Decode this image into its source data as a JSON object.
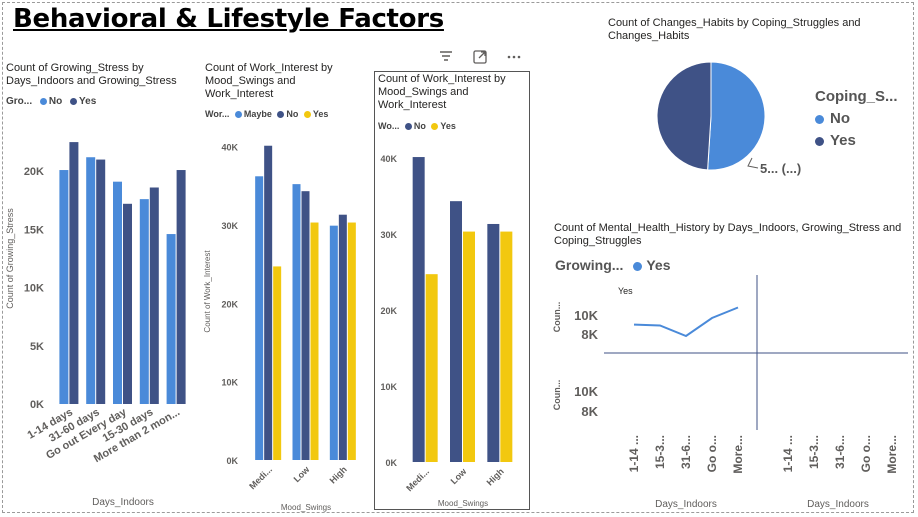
{
  "page": {
    "title": "Behavioral & Lifestyle Factors"
  },
  "colors": {
    "no": "#3f5286",
    "yes_blue": "#4a8ad9",
    "yes_gold": "#f2c80f",
    "maybe": "#4a8ad9",
    "no_bar": "#3f5286",
    "axis": "#605e5c"
  },
  "icons": {
    "filter": "filter-icon",
    "focus": "focus-mode-icon",
    "more": "more-options-icon"
  },
  "visuals": {
    "v1": {
      "title": "Count of Growing_Stress by Days_Indoors and Growing_Stress",
      "legend_title": "Gro...",
      "legend": [
        "No",
        "Yes"
      ]
    },
    "v2": {
      "title": "Count of Work_Interest by Mood_Swings and Work_Interest",
      "legend_title": "Wor...",
      "legend": [
        "Maybe",
        "No",
        "Yes"
      ]
    },
    "v3": {
      "title": "Count of Work_Interest by Mood_Swings and Work_Interest",
      "legend_title": "Wo...",
      "legend": [
        "No",
        "Yes"
      ]
    },
    "v4": {
      "title": "Count of Changes_Habits by Coping_Struggles and Changes_Habits",
      "legend_title": "Coping_S...",
      "legend": [
        "No",
        "Yes"
      ],
      "data_label": "5... (...)"
    },
    "v5": {
      "title": "Count of Mental_Health_History by Days_Indoors, Growing_Stress and Coping_Struggles",
      "legend_title": "Growing...",
      "legend": [
        "Yes"
      ],
      "panel_label": "Yes"
    }
  },
  "chart_data": [
    {
      "id": "v1",
      "type": "bar",
      "xlabel": "Days_Indoors",
      "ylabel": "Count of Growing_Stress",
      "categories": [
        "1-14 days",
        "31-60 days",
        "Go out Every day",
        "15-30 days",
        "More than 2 mon..."
      ],
      "ylim": [
        0,
        25000
      ],
      "yticks": [
        "0K",
        "5K",
        "10K",
        "15K",
        "20K"
      ],
      "ytick_values": [
        0,
        5000,
        10000,
        15000,
        20000
      ],
      "series": [
        {
          "name": "No",
          "values": [
            20100,
            21200,
            19100,
            17600,
            14600
          ]
        },
        {
          "name": "Yes",
          "values": [
            22500,
            21000,
            17200,
            18600,
            20100
          ]
        }
      ]
    },
    {
      "id": "v2",
      "type": "bar",
      "xlabel": "Mood_Swings",
      "ylabel": "Count of Work_Interest",
      "categories": [
        "Medi...",
        "Low",
        "High"
      ],
      "ylim": [
        0,
        43000
      ],
      "yticks": [
        "0K",
        "10K",
        "20K",
        "30K",
        "40K"
      ],
      "ytick_values": [
        0,
        10000,
        20000,
        30000,
        40000
      ],
      "series": [
        {
          "name": "Maybe",
          "values": [
            36200,
            35200,
            29900
          ]
        },
        {
          "name": "No",
          "values": [
            40100,
            34300,
            31300
          ]
        },
        {
          "name": "Yes",
          "values": [
            24700,
            30300,
            30300
          ]
        }
      ]
    },
    {
      "id": "v3",
      "type": "bar",
      "xlabel": "Mood_Swings",
      "ylabel": "",
      "categories": [
        "Medi...",
        "Low",
        "High"
      ],
      "ylim": [
        0,
        43000
      ],
      "yticks": [
        "0K",
        "10K",
        "20K",
        "30K",
        "40K"
      ],
      "ytick_values": [
        0,
        10000,
        20000,
        30000,
        40000
      ],
      "series": [
        {
          "name": "No",
          "values": [
            40100,
            34300,
            31300
          ]
        },
        {
          "name": "Yes",
          "values": [
            24700,
            30300,
            30300
          ]
        }
      ]
    },
    {
      "id": "v4",
      "type": "pie",
      "slices": [
        {
          "name": "No",
          "value": 51
        },
        {
          "name": "Yes",
          "value": 49
        }
      ]
    },
    {
      "id": "v5",
      "type": "line",
      "xlabel": "Days_Indoors",
      "ylabel": "Coun...",
      "categories": [
        "1-14 ...",
        "15-3...",
        "31-6...",
        "Go o...",
        "More..."
      ],
      "yticks": [
        "10K",
        "8K"
      ],
      "ytick_values": [
        10000,
        8000
      ],
      "series": [
        {
          "name": "Yes",
          "values": [
            9200,
            9100,
            8000,
            9900,
            11000
          ]
        }
      ]
    }
  ]
}
